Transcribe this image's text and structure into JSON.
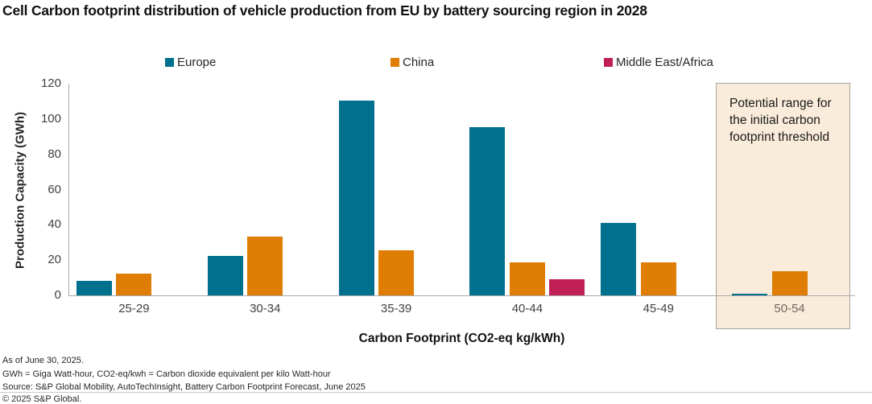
{
  "title": "Cell Carbon footprint distribution of vehicle production from EU by battery sourcing region in 2028",
  "footnotes": [
    "As of June 30, 2025.",
    "GWh = Giga Watt-hour, CO2-eq/kwh = Carbon dioxide equivalent per kilo Watt-hour",
    "Source: S&P Global Mobility, AutoTechInsight, Battery Carbon Footprint Forecast, June 2025"
  ],
  "copyright": "© 2025 S&P Global.",
  "colors": {
    "europe": "#00708f",
    "china": "#e07d05",
    "middle_east_africa": "#c02056",
    "highlight_fill": "#faecda",
    "highlight_border": "#a8a49e",
    "axis": "#a9a9a9"
  },
  "chart_data": {
    "type": "bar",
    "title": "Cell Carbon footprint distribution of vehicle production from EU by battery sourcing region in 2028",
    "categories": [
      "25-29",
      "30-34",
      "35-39",
      "40-44",
      "45-49",
      "50-54"
    ],
    "series": [
      {
        "name": "Europe",
        "color": "#00708f",
        "values": [
          8,
          22.5,
          110.5,
          95.5,
          41,
          1
        ]
      },
      {
        "name": "China",
        "color": "#e07d05",
        "values": [
          12.5,
          33.5,
          25.5,
          18.5,
          18.5,
          13.5
        ]
      },
      {
        "name": "Middle East/Africa",
        "color": "#c02056",
        "values": [
          0,
          0,
          0,
          9,
          0,
          0
        ]
      }
    ],
    "xlabel": "Carbon Footprint (CO2-eq kg/kWh)",
    "ylabel": "Production Capacity (GWh)",
    "ylim": [
      0,
      120
    ],
    "yticks": [
      0,
      20,
      40,
      60,
      80,
      100,
      120
    ],
    "grid": false,
    "legend_position": "top",
    "highlight_region": {
      "category": "50-54",
      "label": "Potential range for the initial carbon footprint threshold",
      "fill": "#faecda",
      "border": "#a8a49e"
    }
  }
}
